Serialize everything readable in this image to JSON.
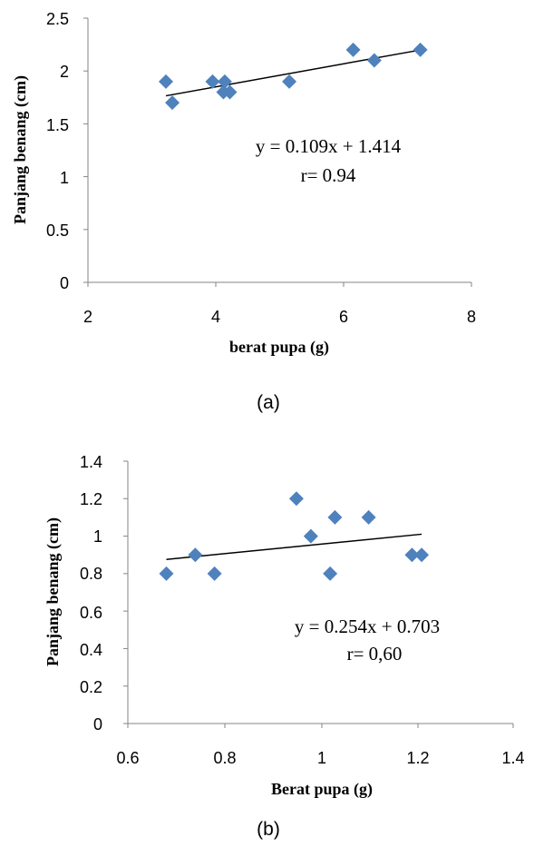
{
  "colors": {
    "marker": "#4F81BD",
    "axis": "#868686",
    "trendline": "#000000"
  },
  "chart_data": [
    {
      "type": "scatter",
      "caption": "(a)",
      "xlabel": "berat pupa (g)",
      "ylabel": "Panjang benang (cm)",
      "xlim": [
        2,
        8
      ],
      "ylim": [
        0,
        2.5
      ],
      "x_ticks": [
        "2",
        "4",
        "6",
        "8"
      ],
      "y_ticks": [
        "0",
        "0.5",
        "1",
        "1.5",
        "2",
        "2.5"
      ],
      "points": [
        {
          "x": 3.22,
          "y": 1.9
        },
        {
          "x": 3.32,
          "y": 1.7
        },
        {
          "x": 3.95,
          "y": 1.9
        },
        {
          "x": 4.12,
          "y": 1.8
        },
        {
          "x": 4.14,
          "y": 1.9
        },
        {
          "x": 4.22,
          "y": 1.8
        },
        {
          "x": 5.15,
          "y": 1.9
        },
        {
          "x": 6.15,
          "y": 2.2
        },
        {
          "x": 6.48,
          "y": 2.1
        },
        {
          "x": 7.2,
          "y": 2.2
        }
      ],
      "trendline": {
        "slope": 0.109,
        "intercept": 1.414,
        "x_range": [
          3.22,
          7.2
        ]
      },
      "annotation_lines": [
        "y = 0.109x + 1.414",
        "r= 0.94"
      ]
    },
    {
      "type": "scatter",
      "caption": "(b)",
      "xlabel": "Berat pupa (g)",
      "ylabel": "Panjang benang (cm)",
      "xlim": [
        0.6,
        1.4
      ],
      "ylim": [
        0,
        1.4
      ],
      "x_ticks": [
        "0.6",
        "0.8",
        "1",
        "1.2",
        "1.4"
      ],
      "y_ticks": [
        "0",
        "0.2",
        "0.4",
        "0.6",
        "0.8",
        "1",
        "1.2",
        "1.4"
      ],
      "points": [
        {
          "x": 0.68,
          "y": 0.8
        },
        {
          "x": 0.74,
          "y": 0.9
        },
        {
          "x": 0.78,
          "y": 0.8
        },
        {
          "x": 0.95,
          "y": 1.2
        },
        {
          "x": 0.98,
          "y": 1.0
        },
        {
          "x": 1.02,
          "y": 0.8
        },
        {
          "x": 1.03,
          "y": 1.1
        },
        {
          "x": 1.1,
          "y": 1.1
        },
        {
          "x": 1.19,
          "y": 0.9
        },
        {
          "x": 1.21,
          "y": 0.9
        }
      ],
      "trendline": {
        "slope": 0.254,
        "intercept": 0.703,
        "x_range": [
          0.68,
          1.21
        ]
      },
      "annotation_lines": [
        "y = 0.254x + 0.703",
        "r= 0,60"
      ]
    }
  ]
}
